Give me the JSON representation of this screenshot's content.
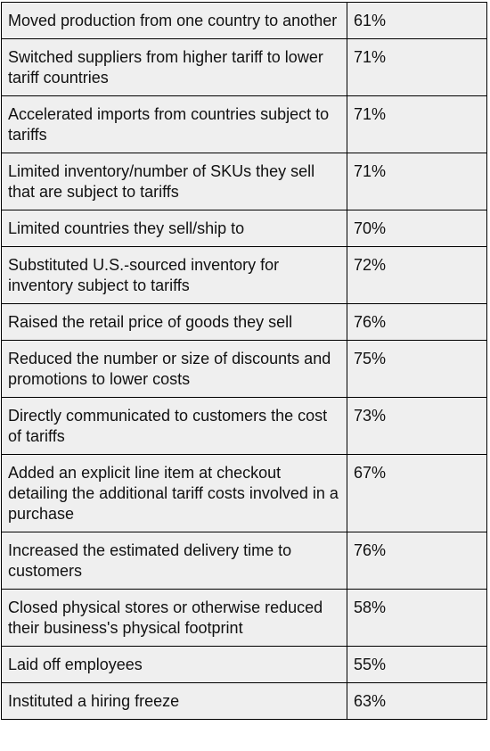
{
  "table": {
    "rows": [
      {
        "label": "Moved production from one country to another",
        "value": "61%"
      },
      {
        "label": "Switched suppliers from higher tariff to lower tariff countries",
        "value": "71%"
      },
      {
        "label": "Accelerated imports from countries subject to tariffs",
        "value": "71%"
      },
      {
        "label": "Limited inventory/number of SKUs they sell that are subject to tariffs",
        "value": "71%"
      },
      {
        "label": "Limited countries they sell/ship to",
        "value": "70%"
      },
      {
        "label": "Substituted U.S.-sourced inventory for inventory subject to tariffs",
        "value": "72%"
      },
      {
        "label": "Raised the retail price of goods they sell",
        "value": "76%"
      },
      {
        "label": "Reduced the number or size of discounts and promotions to lower costs",
        "value": "75%"
      },
      {
        "label": "Directly communicated to customers the cost of tariffs",
        "value": "73%"
      },
      {
        "label": "Added an explicit line item at checkout detailing the additional tariff costs involved in a purchase",
        "value": "67%"
      },
      {
        "label": "Increased the estimated delivery time to customers",
        "value": "76%"
      },
      {
        "label": "Closed physical stores or otherwise reduced their business's physical footprint",
        "value": "58%"
      },
      {
        "label": "Laid off employees",
        "value": "55%"
      },
      {
        "label": "Instituted a hiring freeze",
        "value": "63%"
      }
    ]
  }
}
